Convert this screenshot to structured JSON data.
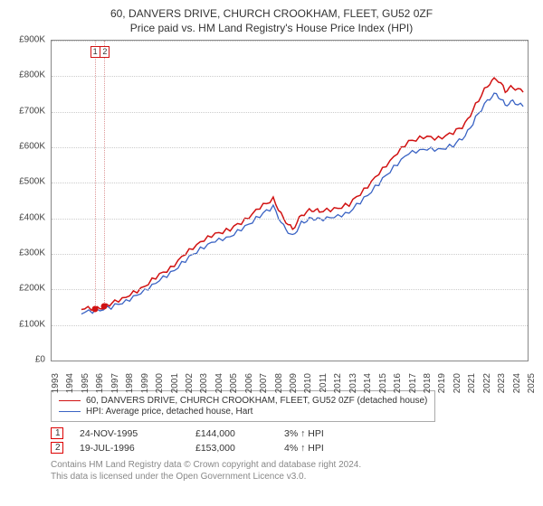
{
  "title_line1": "60, DANVERS DRIVE, CHURCH CROOKHAM, FLEET, GU52 0ZF",
  "title_line2": "Price paid vs. HM Land Registry's House Price Index (HPI)",
  "chart": {
    "type": "line",
    "background_color": "#ffffff",
    "grid_color": "#cccccc",
    "axis_color": "#888888",
    "label_fontsize": 10,
    "title_fontsize": 12,
    "y_axis": {
      "min": 0,
      "max": 900000,
      "tick_step": 100000,
      "ticks": [
        "£0",
        "£100K",
        "£200K",
        "£300K",
        "£400K",
        "£500K",
        "£600K",
        "£700K",
        "£800K",
        "£900K"
      ]
    },
    "x_axis": {
      "min": 1993,
      "max": 2025,
      "ticks": [
        1993,
        1994,
        1995,
        1996,
        1997,
        1998,
        1999,
        2000,
        2001,
        2002,
        2003,
        2004,
        2005,
        2006,
        2007,
        2008,
        2009,
        2010,
        2011,
        2012,
        2013,
        2014,
        2015,
        2016,
        2017,
        2018,
        2019,
        2020,
        2021,
        2022,
        2023,
        2024,
        2025
      ]
    },
    "series": [
      {
        "name": "property",
        "label": "60, DANVERS DRIVE, CHURCH CROOKHAM, FLEET, GU52 0ZF (detached house)",
        "color": "#d11212",
        "line_width": 1.5,
        "points": [
          [
            1995.0,
            148000
          ],
          [
            1995.9,
            144000
          ],
          [
            1996.6,
            153000
          ],
          [
            1997.0,
            160000
          ],
          [
            1998.0,
            180000
          ],
          [
            1999.0,
            200000
          ],
          [
            2000.0,
            235000
          ],
          [
            2001.0,
            260000
          ],
          [
            2002.0,
            300000
          ],
          [
            2003.0,
            335000
          ],
          [
            2004.0,
            355000
          ],
          [
            2005.0,
            370000
          ],
          [
            2006.0,
            395000
          ],
          [
            2007.0,
            430000
          ],
          [
            2007.9,
            455000
          ],
          [
            2008.6,
            400000
          ],
          [
            2009.2,
            370000
          ],
          [
            2009.8,
            410000
          ],
          [
            2010.5,
            425000
          ],
          [
            2011.0,
            420000
          ],
          [
            2012.0,
            425000
          ],
          [
            2013.0,
            440000
          ],
          [
            2014.0,
            480000
          ],
          [
            2015.0,
            525000
          ],
          [
            2016.0,
            575000
          ],
          [
            2017.0,
            615000
          ],
          [
            2018.0,
            630000
          ],
          [
            2019.0,
            625000
          ],
          [
            2020.0,
            640000
          ],
          [
            2020.8,
            665000
          ],
          [
            2021.5,
            720000
          ],
          [
            2022.3,
            775000
          ],
          [
            2022.9,
            795000
          ],
          [
            2023.5,
            760000
          ],
          [
            2024.0,
            770000
          ],
          [
            2024.7,
            755000
          ]
        ]
      },
      {
        "name": "hpi",
        "label": "HPI: Average price, detached house, Hart",
        "color": "#3a63c4",
        "line_width": 1.3,
        "points": [
          [
            1995.0,
            135000
          ],
          [
            1996.0,
            140000
          ],
          [
            1997.0,
            150000
          ],
          [
            1998.0,
            168000
          ],
          [
            1999.0,
            188000
          ],
          [
            2000.0,
            220000
          ],
          [
            2001.0,
            245000
          ],
          [
            2002.0,
            282000
          ],
          [
            2003.0,
            315000
          ],
          [
            2004.0,
            335000
          ],
          [
            2005.0,
            350000
          ],
          [
            2006.0,
            375000
          ],
          [
            2007.0,
            408000
          ],
          [
            2007.9,
            432000
          ],
          [
            2008.6,
            378000
          ],
          [
            2009.2,
            350000
          ],
          [
            2009.8,
            388000
          ],
          [
            2010.5,
            402000
          ],
          [
            2011.0,
            398000
          ],
          [
            2012.0,
            402000
          ],
          [
            2013.0,
            418000
          ],
          [
            2014.0,
            455000
          ],
          [
            2015.0,
            498000
          ],
          [
            2016.0,
            545000
          ],
          [
            2017.0,
            582000
          ],
          [
            2018.0,
            596000
          ],
          [
            2019.0,
            592000
          ],
          [
            2020.0,
            606000
          ],
          [
            2020.8,
            630000
          ],
          [
            2021.5,
            682000
          ],
          [
            2022.3,
            734000
          ],
          [
            2022.9,
            752000
          ],
          [
            2023.5,
            720000
          ],
          [
            2024.0,
            730000
          ],
          [
            2024.7,
            715000
          ]
        ]
      }
    ],
    "markers": [
      {
        "n": "1",
        "x": 1995.9,
        "y": 144000
      },
      {
        "n": "2",
        "x": 1996.55,
        "y": 153000
      }
    ],
    "marker_box_color": "#d11212",
    "marker_dot_color": "#d11212"
  },
  "transactions": [
    {
      "n": "1",
      "date": "24-NOV-1995",
      "price": "£144,000",
      "diff": "3% ↑ HPI"
    },
    {
      "n": "2",
      "date": "19-JUL-1996",
      "price": "£153,000",
      "diff": "4% ↑ HPI"
    }
  ],
  "attribution_line1": "Contains HM Land Registry data © Crown copyright and database right 2024.",
  "attribution_line2": "This data is licensed under the Open Government Licence v3.0."
}
